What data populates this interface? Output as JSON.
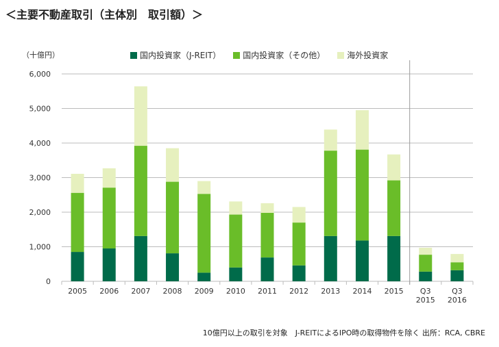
{
  "title": "＜主要不動産取引（主体別　取引額）＞",
  "footer": "10億円以上の取引を対象　J-REITによるIPO時の取得物件を除く 出所：RCA, CBRE",
  "chart_data": {
    "type": "bar",
    "stacked": true,
    "ylabel": "（十億円）",
    "ylim": [
      0,
      6000
    ],
    "yticks": [
      "0",
      "1,000",
      "2,000",
      "3,000",
      "4,000",
      "5,000",
      "6,000"
    ],
    "grid": true,
    "legend_placement": "top",
    "categories": [
      "2005",
      "2006",
      "2007",
      "2008",
      "2009",
      "2010",
      "2011",
      "2012",
      "2013",
      "2014",
      "2015",
      "Q3\n2015",
      "Q3\n2016"
    ],
    "separator_before_category": "Q3\n2015",
    "series": [
      {
        "name": "国内投資家（J-REIT）",
        "color": "#006B4A",
        "values": [
          850,
          950,
          1310,
          810,
          250,
          400,
          690,
          460,
          1310,
          1180,
          1310,
          280,
          320
        ]
      },
      {
        "name": "国内投資家（その他）",
        "color": "#6ABD29",
        "values": [
          1710,
          1760,
          2610,
          2070,
          2280,
          1530,
          1290,
          1240,
          2470,
          2630,
          1610,
          490,
          230
        ]
      },
      {
        "name": "海外投資家",
        "color": "#E6F0BE",
        "values": [
          550,
          560,
          1720,
          970,
          370,
          380,
          280,
          450,
          610,
          1140,
          750,
          200,
          240
        ]
      }
    ]
  }
}
